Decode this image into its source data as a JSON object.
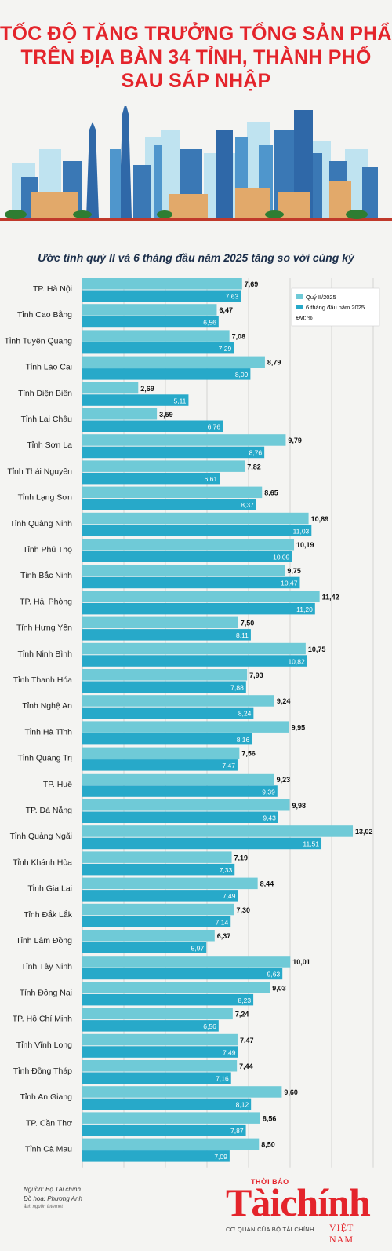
{
  "title_lines": [
    "TỐC ĐỘ TĂNG TRƯỞNG TỔNG SẢN PHẨM",
    "TRÊN ĐỊA BÀN 34 TỈNH, THÀNH PHỐ",
    "SAU SÁP NHẬP"
  ],
  "subtitle": "Ước tính quý II và 6 tháng đầu năm 2025 tăng so với cùng kỳ",
  "colors": {
    "title": "#e4242b",
    "series1": "#6fcad7",
    "series2": "#27a9c9"
  },
  "chart_data": {
    "type": "bar",
    "orientation": "horizontal",
    "categories": [
      "TP. Hà Nội",
      "Tỉnh Cao Bằng",
      "Tỉnh Tuyên Quang",
      "Tỉnh Lào Cai",
      "Tỉnh Điện Biên",
      "Tỉnh Lai Châu",
      "Tỉnh Sơn La",
      "Tỉnh Thái Nguyên",
      "Tỉnh Lạng Sơn",
      "Tỉnh Quảng Ninh",
      "Tỉnh Phú Thọ",
      "Tỉnh Bắc Ninh",
      "TP. Hải Phòng",
      "Tỉnh Hưng Yên",
      "Tỉnh Ninh Bình",
      "Tỉnh Thanh Hóa",
      "Tỉnh Nghệ An",
      "Tỉnh Hà Tĩnh",
      "Tỉnh Quảng Trị",
      "TP. Huế",
      "TP. Đà Nẵng",
      "Tỉnh Quảng Ngãi",
      "Tỉnh Khánh Hòa",
      "Tỉnh Gia Lai",
      "Tỉnh Đắk Lắk",
      "Tỉnh Lâm Đồng",
      "Tỉnh Tây Ninh",
      "Tỉnh Đồng Nai",
      "TP. Hồ Chí Minh",
      "Tỉnh Vĩnh Long",
      "Tỉnh Đồng Tháp",
      "Tỉnh An Giang",
      "TP. Cần Thơ",
      "Tỉnh Cà Mau"
    ],
    "series": [
      {
        "name": "Quý II/2025",
        "values": [
          7.69,
          6.47,
          7.08,
          8.79,
          2.69,
          3.59,
          9.79,
          7.82,
          8.65,
          10.89,
          10.19,
          9.75,
          11.42,
          7.5,
          10.75,
          7.93,
          9.24,
          9.95,
          7.56,
          9.23,
          9.98,
          13.02,
          7.19,
          8.44,
          7.3,
          6.37,
          10.01,
          9.03,
          7.24,
          7.47,
          7.44,
          9.6,
          8.56,
          8.5
        ],
        "labels": [
          "7,69",
          "6,47",
          "7,08",
          "8,79",
          "2,69",
          "3,59",
          "9,79",
          "7,82",
          "8,65",
          "10,89",
          "10,19",
          "9,75",
          "11,42",
          "7,50",
          "10,75",
          "7,93",
          "9,24",
          "9,95",
          "7,56",
          "9,23",
          "9,98",
          "13,02",
          "7,19",
          "8,44",
          "7,30",
          "6,37",
          "10,01",
          "9,03",
          "7,24",
          "7,47",
          "7,44",
          "9,60",
          "8,56",
          "8,50"
        ]
      },
      {
        "name": "6 tháng đầu năm 2025",
        "values": [
          7.63,
          6.56,
          7.29,
          8.09,
          5.11,
          6.76,
          8.76,
          6.61,
          8.37,
          11.03,
          10.09,
          10.47,
          11.2,
          8.11,
          10.82,
          7.88,
          8.24,
          8.16,
          7.47,
          9.39,
          9.43,
          11.51,
          7.33,
          7.49,
          7.14,
          5.97,
          9.63,
          8.23,
          6.56,
          7.49,
          7.16,
          8.12,
          7.87,
          7.09
        ],
        "labels": [
          "7,63",
          "6,56",
          "7,29",
          "8,09",
          "5,11",
          "6,76",
          "8,76",
          "6,61",
          "8,37",
          "11,03",
          "10,09",
          "10,47",
          "11,20",
          "8,11",
          "10,82",
          "7,88",
          "8,24",
          "8,16",
          "7,47",
          "9,39",
          "9,43",
          "11,51",
          "7,33",
          "7,49",
          "7,14",
          "5,97",
          "9,63",
          "8,23",
          "6,56",
          "7,49",
          "7,16",
          "8,12",
          "7,87",
          "7,09"
        ]
      }
    ],
    "unit_note": "Đvt: %",
    "xlim": [
      0,
      13.5
    ],
    "grid": true,
    "legend_position": "top-right"
  },
  "footer": {
    "source": "Nguồn: Bộ Tài chính",
    "designer": "Đồ họa: Phương Anh",
    "credit": "ảnh nguồn internet"
  },
  "brand": {
    "top": "THỜI BÁO",
    "name": "Tàichính",
    "tagline": "CƠ QUAN CỦA BỘ TÀI CHÍNH",
    "country": "VIỆT NAM"
  }
}
